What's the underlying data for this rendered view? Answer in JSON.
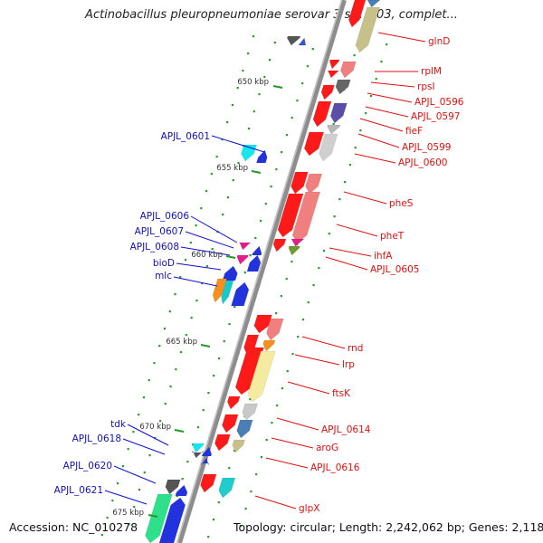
{
  "title": "Actinobacillus pleuropneumoniae serovar 3 str. JL03, complet...",
  "footer": {
    "accession": "Accession: NC_010278",
    "summary": "Topology: circular; Length: 2,242,062 bp; Genes: 2,118"
  },
  "colors": {
    "backbone": "#8c8c8c",
    "kbp_tick": "#229922",
    "label_left": "#1111bb",
    "label_right": "#dd1111",
    "leader_left": "#1111cc",
    "leader_right": "#dd1111"
  },
  "kbp_labels": [
    "650 kbp",
    "655 kbp",
    "660 kbp",
    "665 kbp",
    "670 kbp",
    "675 kbp"
  ],
  "left_labels": [
    "APJL_0601",
    "APJL_0606",
    "APJL_0607",
    "APJL_0608",
    "bioD",
    "mlc",
    "tdk",
    "APJL_0618",
    "APJL_0620",
    "APJL_0621"
  ],
  "right_labels": [
    "glnD",
    "rplM",
    "rpsI",
    "APJL_0596",
    "APJL_0597",
    "fieF",
    "APJL_0599",
    "APJL_0600",
    "pheS",
    "pheT",
    "ihfA",
    "APJL_0605",
    "rnd",
    "lrp",
    "ftsK",
    "APJL_0614",
    "aroG",
    "APJL_0616",
    "glpX"
  ]
}
